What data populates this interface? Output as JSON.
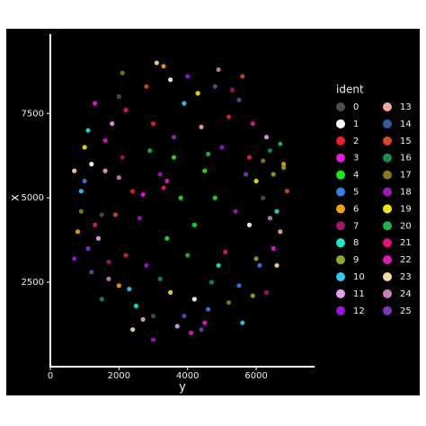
{
  "chart_data": {
    "type": "scatter",
    "xlabel": "y",
    "ylabel": "x",
    "legend_title": "ident",
    "xlim": [
      0,
      7700
    ],
    "ylim": [
      0,
      9850
    ],
    "xticks": [
      0,
      2000,
      4000,
      6000
    ],
    "yticks": [
      2500,
      5000,
      7500
    ],
    "series": [
      {
        "name": "0",
        "color": "#4d4d4d",
        "x": [
          1500,
          6200,
          3000,
          2000
        ],
        "values": [
          4500,
          5000,
          1500,
          8000
        ]
      },
      {
        "name": "1",
        "color": "#ffffff",
        "x": [
          1200,
          5800,
          3500,
          4200
        ],
        "values": [
          6000,
          4200,
          8500,
          2000
        ]
      },
      {
        "name": "2",
        "color": "#e8202a",
        "x": [
          2400,
          3000,
          5200,
          2200,
          5800
        ],
        "values": [
          5200,
          7200,
          7400,
          3300,
          6200
        ]
      },
      {
        "name": "3",
        "color": "#e41ade",
        "x": [
          2700,
          1300,
          4500,
          6500
        ],
        "values": [
          5100,
          7800,
          1300,
          3500
        ]
      },
      {
        "name": "4",
        "color": "#1ee81e",
        "x": [
          3800,
          4200,
          4500,
          3400,
          4800,
          3600
        ],
        "values": [
          5000,
          4200,
          5800,
          3800,
          5000,
          6200
        ]
      },
      {
        "name": "5",
        "color": "#3a7de6",
        "x": [
          5500,
          4600,
          6100,
          1000
        ],
        "values": [
          2400,
          1700,
          3000,
          5500
        ]
      },
      {
        "name": "6",
        "color": "#f0a020",
        "x": [
          2000,
          6800,
          800,
          3300
        ],
        "values": [
          2400,
          6000,
          4000,
          8900
        ]
      },
      {
        "name": "7",
        "color": "#a0166e",
        "x": [
          2100,
          1700,
          5300,
          6300
        ],
        "values": [
          6200,
          3100,
          8200,
          2200
        ]
      },
      {
        "name": "8",
        "color": "#1ee8c8",
        "x": [
          2500,
          6600,
          1100,
          4900
        ],
        "values": [
          1800,
          4600,
          7000,
          3000
        ]
      },
      {
        "name": "9",
        "color": "#8aaa2a",
        "x": [
          6500,
          6000,
          6800,
          5900
        ],
        "values": [
          5700,
          3200,
          5900,
          2100
        ]
      },
      {
        "name": "10",
        "color": "#38c8f0",
        "x": [
          900,
          3900,
          5600,
          2300
        ],
        "values": [
          5200,
          7800,
          1300,
          2300
        ]
      },
      {
        "name": "11",
        "color": "#e6a0f0",
        "x": [
          1400,
          3700,
          6300,
          1800
        ],
        "values": [
          3800,
          1200,
          6800,
          7200
        ]
      },
      {
        "name": "12",
        "color": "#9a14e6",
        "x": [
          2800,
          5000,
          700,
          4000
        ],
        "values": [
          3000,
          6500,
          3200,
          8600
        ]
      },
      {
        "name": "13",
        "color": "#f0a8a0",
        "x": [
          1600,
          4400,
          6700,
          2700
        ],
        "values": [
          5800,
          7100,
          4000,
          1400
        ]
      },
      {
        "name": "14",
        "color": "#3a5aa0",
        "x": [
          4800,
          5500,
          3900,
          1200
        ],
        "values": [
          8300,
          7900,
          1500,
          2800
        ]
      },
      {
        "name": "15",
        "color": "#d04a20",
        "x": [
          1900,
          5600,
          2800,
          6900
        ],
        "values": [
          4500,
          8600,
          8300,
          5200
        ]
      },
      {
        "name": "16",
        "color": "#1a8a5a",
        "x": [
          6400,
          4700,
          1500,
          3200
        ],
        "values": [
          6400,
          2500,
          2000,
          2600
        ]
      },
      {
        "name": "17",
        "color": "#8a7a1e",
        "x": [
          6200,
          5200,
          2100,
          900
        ],
        "values": [
          6100,
          1900,
          8700,
          4600
        ]
      },
      {
        "name": "18",
        "color": "#a01ab4",
        "x": [
          2600,
          3200,
          5400,
          3000
        ],
        "values": [
          4400,
          5700,
          4600,
          800
        ]
      },
      {
        "name": "19",
        "color": "#f0e61e",
        "x": [
          6000,
          4300,
          1000,
          3500
        ],
        "values": [
          5500,
          8100,
          6500,
          2200
        ]
      },
      {
        "name": "20",
        "color": "#1eb44a",
        "x": [
          4000,
          4600,
          6700,
          2900
        ],
        "values": [
          3300,
          6300,
          6600,
          6400
        ]
      },
      {
        "name": "21",
        "color": "#e0147a",
        "x": [
          3300,
          2200,
          5100,
          1300
        ],
        "values": [
          5300,
          7600,
          3400,
          4200
        ]
      },
      {
        "name": "22",
        "color": "#e61ab4",
        "x": [
          3400,
          1600,
          5900,
          4100
        ],
        "values": [
          5500,
          6700,
          7200,
          1000
        ]
      },
      {
        "name": "23",
        "color": "#f5dca0",
        "x": [
          700,
          3100,
          6600,
          2400
        ],
        "values": [
          5800,
          9000,
          3000,
          1100
        ]
      },
      {
        "name": "24",
        "color": "#c880b4",
        "x": [
          1700,
          4900,
          6400,
          2000
        ],
        "values": [
          2600,
          8800,
          4400,
          5600
        ]
      },
      {
        "name": "25",
        "color": "#7a3ab4",
        "x": [
          1100,
          3600,
          5700,
          4400
        ],
        "values": [
          3500,
          6800,
          5700,
          1100
        ]
      }
    ]
  }
}
